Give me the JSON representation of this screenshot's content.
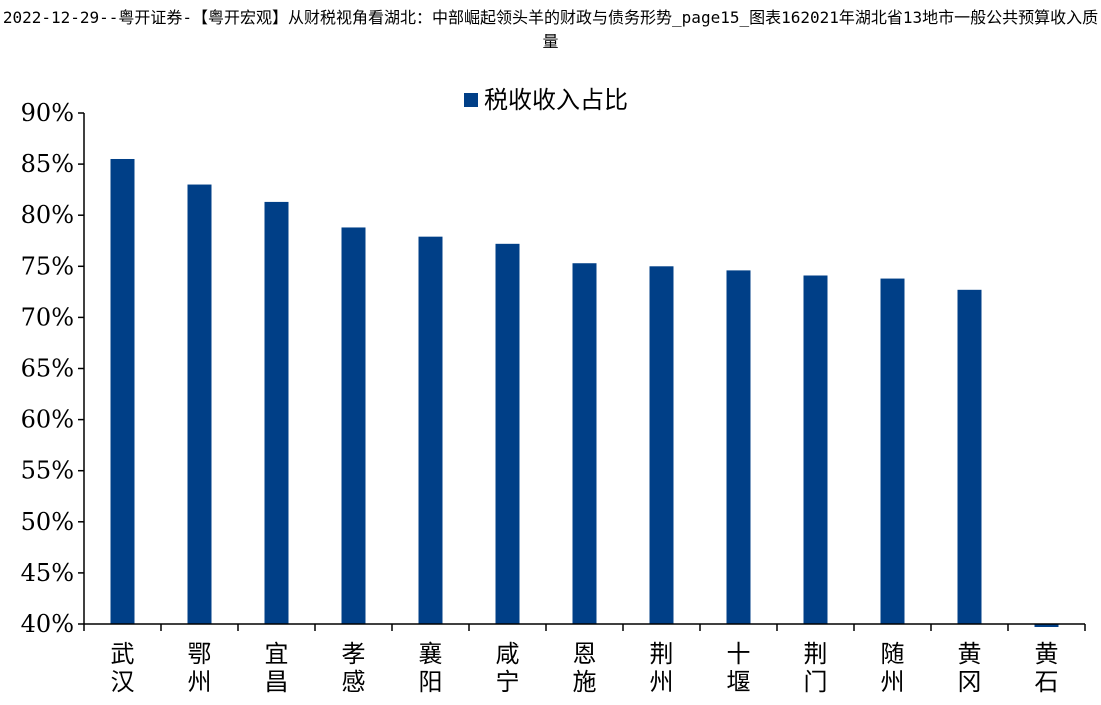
{
  "title": "2022-12-29--粤开证券-【粤开宏观】从财税视角看湖北：中部崛起领头羊的财政与债务形势_page15_图表162021年湖北省13地市一般公共预算收入质量",
  "colors": {
    "bar": "#003F87",
    "axis": "#000000"
  },
  "chart_data": {
    "type": "bar",
    "title": "",
    "xlabel": "",
    "ylabel": "",
    "ylim": [
      40,
      90
    ],
    "yticks": [
      40,
      45,
      50,
      55,
      60,
      65,
      70,
      75,
      80,
      85,
      90
    ],
    "ytick_labels": [
      "40%",
      "45%",
      "50%",
      "55%",
      "60%",
      "65%",
      "70%",
      "75%",
      "80%",
      "85%",
      "90%"
    ],
    "grid": false,
    "legend_position": "top-center",
    "categories": [
      "武汉",
      "鄂州",
      "宜昌",
      "孝感",
      "襄阳",
      "咸宁",
      "恩施",
      "荆州",
      "十堰",
      "荆门",
      "随州",
      "黄冈",
      "黄石"
    ],
    "series": [
      {
        "name": "税收收入占比",
        "values": [
          85.5,
          83.0,
          81.3,
          78.8,
          77.9,
          77.2,
          75.3,
          75.0,
          74.6,
          74.1,
          73.8,
          72.7,
          39.8
        ]
      }
    ]
  }
}
